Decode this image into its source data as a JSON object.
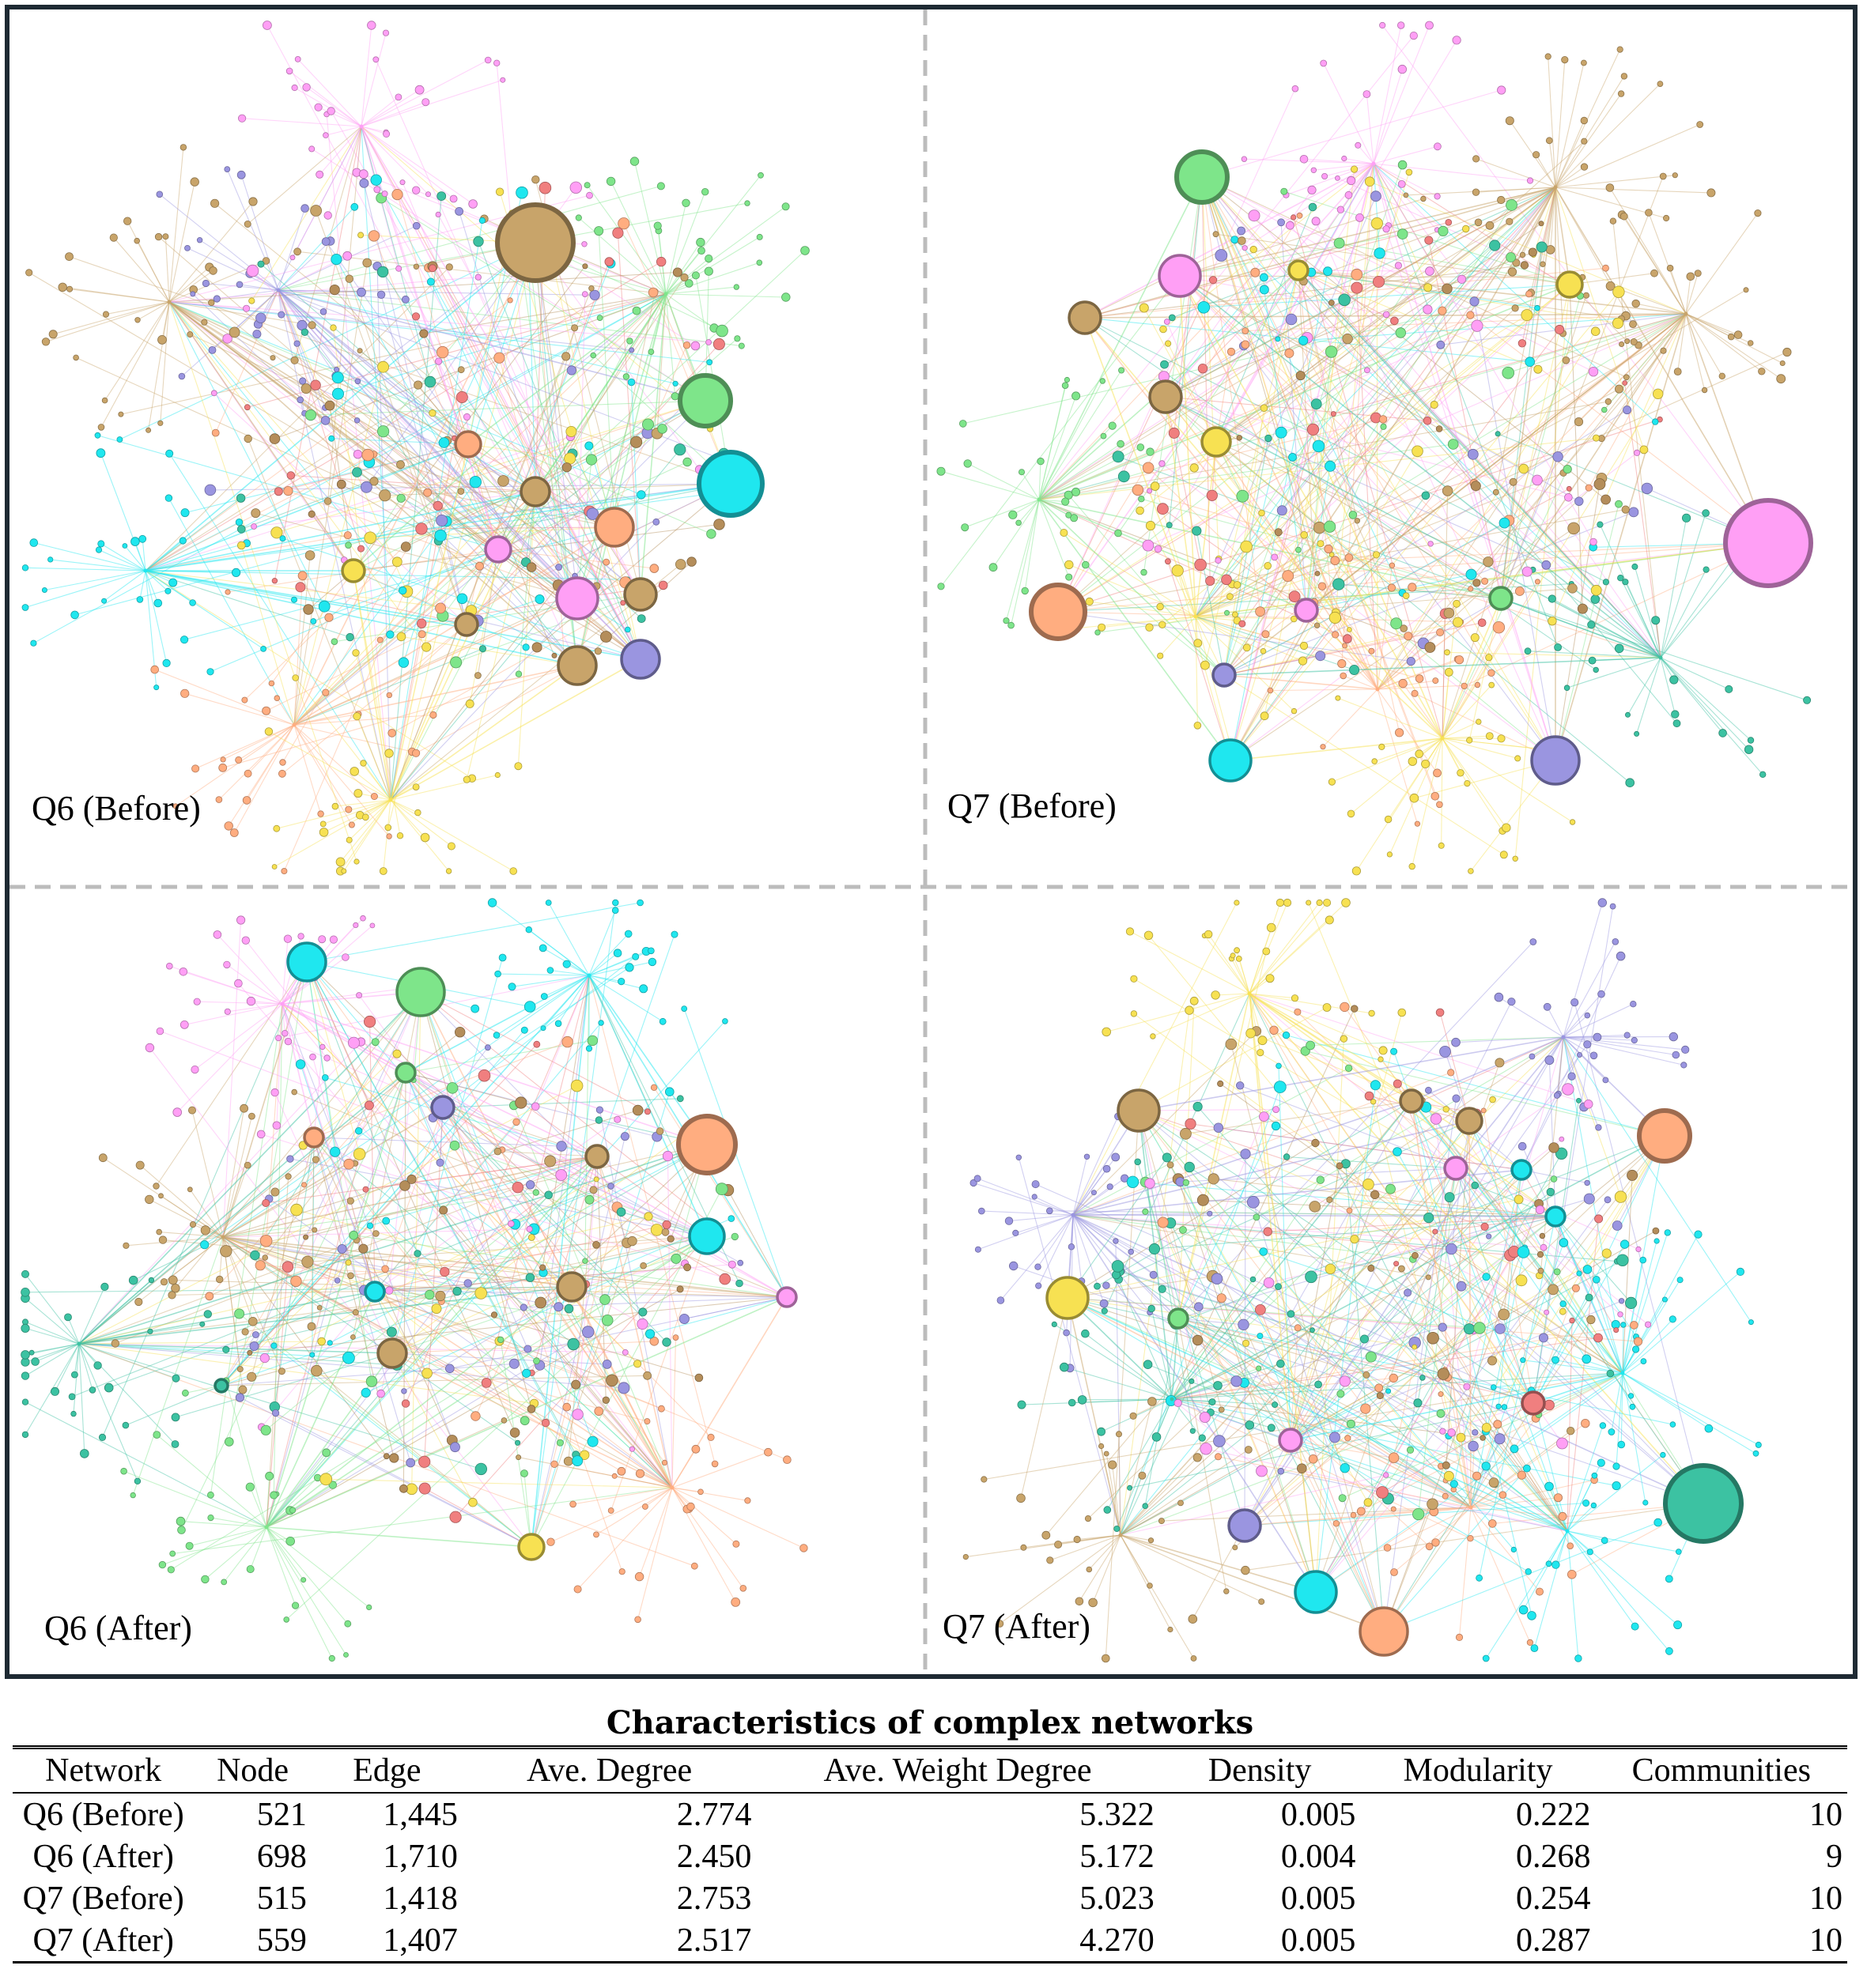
{
  "panels": [
    {
      "label": "Q6 (Before)"
    },
    {
      "label": "Q7 (Before)"
    },
    {
      "label": "Q6 (After)"
    },
    {
      "label": "Q7 (After)"
    }
  ],
  "community_colors": [
    "#c8a46a",
    "#ff9ff5",
    "#7ee58a",
    "#1fe7ef",
    "#ffad80",
    "#f7e152",
    "#9a95e0",
    "#3cc2a2",
    "#f07f7f",
    "#b48d5a"
  ],
  "table": {
    "title": "Characteristics of complex networks",
    "headers": [
      "Network",
      "Node",
      "Edge",
      "Ave. Degree",
      "Ave. Weight Degree",
      "Density",
      "Modularity",
      "Communities"
    ],
    "rows": [
      [
        "Q6 (Before)",
        "521",
        "1,445",
        "2.774",
        "5.322",
        "0.005",
        "0.222",
        "10"
      ],
      [
        "Q6 (After)",
        "698",
        "1,710",
        "2.450",
        "5.172",
        "0.004",
        "0.268",
        "9"
      ],
      [
        "Q7 (Before)",
        "515",
        "1,418",
        "2.753",
        "5.023",
        "0.005",
        "0.254",
        "10"
      ],
      [
        "Q7 (After)",
        "559",
        "1,407",
        "2.517",
        "4.270",
        "0.005",
        "0.287",
        "10"
      ]
    ]
  }
}
